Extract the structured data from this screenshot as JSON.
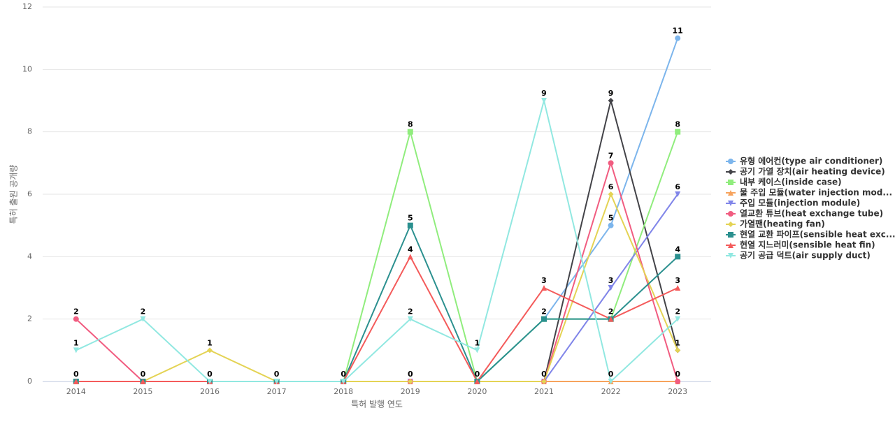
{
  "chart_data": {
    "type": "line",
    "x_label": "특허 발행 연도",
    "y_label": "특허 출원 공개량",
    "categories": [
      "2014",
      "2015",
      "2016",
      "2017",
      "2018",
      "2019",
      "2020",
      "2021",
      "2022",
      "2023"
    ],
    "ylim": [
      0,
      12
    ],
    "yticks": [
      0,
      2,
      4,
      6,
      8,
      10,
      12
    ],
    "grid": true,
    "series": [
      {
        "name": "유형 에어컨(type air conditioner)",
        "color": "#7cb5ec",
        "marker": "circle",
        "values": [
          0,
          0,
          0,
          0,
          0,
          0,
          0,
          2,
          5,
          11
        ]
      },
      {
        "name": "공기 가열 장치(air heating device)",
        "color": "#434348",
        "marker": "diamond",
        "values": [
          0,
          0,
          0,
          0,
          0,
          0,
          0,
          0,
          9,
          1
        ]
      },
      {
        "name": "내부 케이스(inside case)",
        "color": "#90ed7d",
        "marker": "square",
        "values": [
          0,
          0,
          0,
          0,
          0,
          8,
          0,
          2,
          2,
          8
        ]
      },
      {
        "name": "물 주입 모듈(water injection mod...",
        "color": "#f7a35c",
        "marker": "triangle",
        "values": [
          0,
          0,
          0,
          0,
          0,
          0,
          0,
          0,
          0,
          0
        ]
      },
      {
        "name": "주입 모듈(injection module)",
        "color": "#8085e9",
        "marker": "triangle-down",
        "values": [
          0,
          0,
          0,
          0,
          0,
          0,
          0,
          0,
          3,
          6
        ]
      },
      {
        "name": "열교환 튜브(heat exchange tube)",
        "color": "#f15c80",
        "marker": "circle",
        "values": [
          2,
          0,
          0,
          0,
          0,
          0,
          0,
          0,
          7,
          0
        ]
      },
      {
        "name": "가열팬(heating fan)",
        "color": "#e4d354",
        "marker": "diamond",
        "values": [
          0,
          0,
          1,
          0,
          0,
          0,
          0,
          0,
          6,
          1
        ]
      },
      {
        "name": "현열 교환 파이프(sensible heat exc...",
        "color": "#2b908f",
        "marker": "square",
        "values": [
          0,
          0,
          0,
          0,
          0,
          5,
          0,
          2,
          2,
          4
        ]
      },
      {
        "name": "현열 지느러미(sensible heat fin)",
        "color": "#f45b5b",
        "marker": "triangle",
        "values": [
          0,
          0,
          0,
          0,
          0,
          4,
          0,
          3,
          2,
          3
        ]
      },
      {
        "name": "공기 공급 덕트(air supply duct)",
        "color": "#91e8e1",
        "marker": "triangle-down",
        "values": [
          1,
          2,
          0,
          0,
          0,
          2,
          1,
          9,
          0,
          2
        ]
      }
    ]
  }
}
